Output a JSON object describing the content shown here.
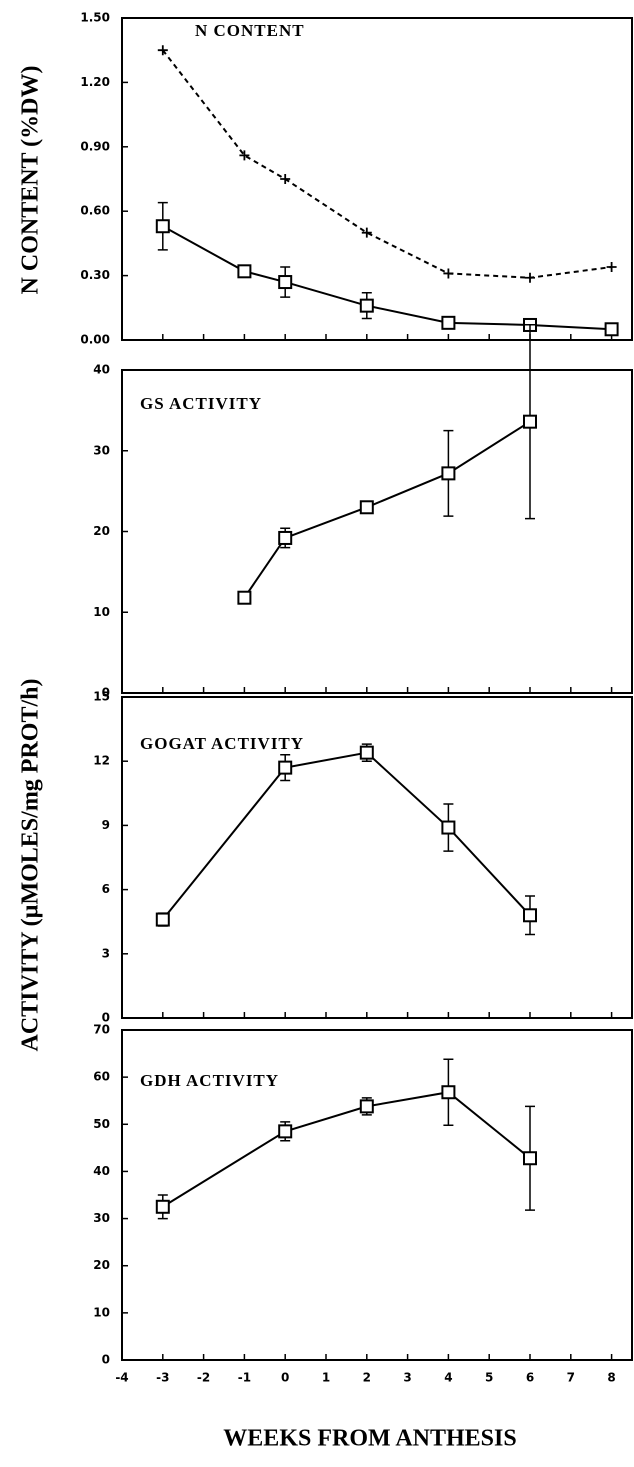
{
  "chart_data": [
    {
      "type": "line",
      "title": "N CONTENT",
      "ylabel": "N CONTENT (%DW)",
      "x": [
        -3,
        -1,
        0,
        2,
        4,
        6,
        8
      ],
      "xlim": [
        -4,
        8.5
      ],
      "ylim": [
        0,
        1.5
      ],
      "yticks": [
        {
          "value": 0,
          "label": "0.00"
        },
        {
          "value": 0.3,
          "label": "0.30"
        },
        {
          "value": 0.6,
          "label": "0.60"
        },
        {
          "value": 0.9,
          "label": "0.90"
        },
        {
          "value": 1.2,
          "label": "1.20"
        },
        {
          "value": 1.5,
          "label": "1.50"
        }
      ],
      "series": [
        {
          "color": "#000000",
          "marker": "plus",
          "dashed": true,
          "values": [
            1.35,
            0.86,
            0.75,
            0.5,
            0.31,
            0.29,
            0.34
          ]
        },
        {
          "color": "#000000",
          "marker": "square",
          "dashed": false,
          "values": [
            0.53,
            0.32,
            0.27,
            0.16,
            0.08,
            0.07,
            0.05
          ],
          "errors": [
            0.11,
            0.01,
            0.07,
            0.06,
            0.01,
            0.01,
            0.01
          ]
        }
      ]
    },
    {
      "type": "line",
      "title": "GS ACTIVITY",
      "ylabel": "ACTIVITY (µMOLES/mg PROT/h)",
      "x": [
        -1,
        0,
        2,
        4,
        6
      ],
      "xlim": [
        -4,
        8.5
      ],
      "ylim": [
        0,
        40
      ],
      "yticks": [
        0,
        10,
        20,
        30,
        40
      ],
      "series": [
        {
          "color": "#000000",
          "marker": "square",
          "dashed": false,
          "values": [
            11.8,
            19.2,
            23,
            27.2,
            33.6
          ],
          "errors": [
            0.5,
            1.2,
            0.5,
            5.3,
            12
          ]
        }
      ]
    },
    {
      "type": "line",
      "title": "GOGAT ACTIVITY",
      "x": [
        -3,
        0,
        2,
        4,
        6
      ],
      "xlim": [
        -4,
        8.5
      ],
      "ylim": [
        0,
        15
      ],
      "yticks": [
        0,
        3,
        6,
        9,
        12,
        15
      ],
      "series": [
        {
          "color": "#000000",
          "marker": "square",
          "dashed": false,
          "values": [
            4.6,
            11.7,
            12.4,
            8.9,
            4.8
          ],
          "errors": [
            0.3,
            0.6,
            0.4,
            1.1,
            0.9
          ]
        }
      ]
    },
    {
      "type": "line",
      "title": "GDH ACTIVITY",
      "xlabel": "WEEKS FROM ANTHESIS",
      "x": [
        -3,
        0,
        2,
        4,
        6
      ],
      "xlim": [
        -4,
        8.5
      ],
      "xticks": [
        -4,
        -3,
        -2,
        -1,
        0,
        1,
        2,
        3,
        4,
        5,
        6,
        7,
        8
      ],
      "ylim": [
        0,
        70
      ],
      "yticks": [
        0,
        10,
        20,
        30,
        40,
        50,
        60,
        70
      ],
      "series": [
        {
          "color": "#000000",
          "marker": "square",
          "dashed": false,
          "values": [
            32.5,
            48.5,
            53.8,
            56.8,
            42.8
          ],
          "errors": [
            2.5,
            2,
            1.8,
            7,
            11
          ]
        }
      ]
    }
  ]
}
